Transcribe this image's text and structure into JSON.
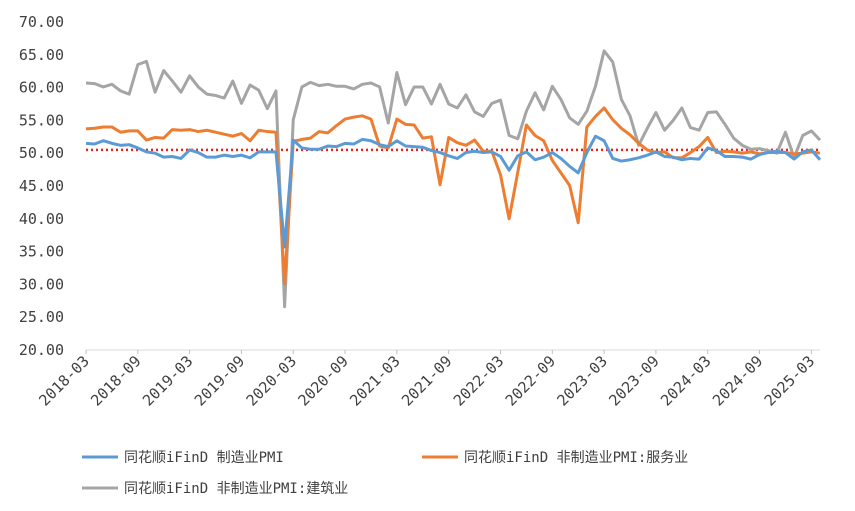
{
  "chart_data": {
    "type": "line",
    "title": "",
    "xlabel": "",
    "ylabel": "",
    "ylim": [
      20,
      70
    ],
    "y_ticks": [
      "20.00",
      "25.00",
      "30.00",
      "35.00",
      "40.00",
      "45.00",
      "50.00",
      "55.00",
      "60.00",
      "65.00",
      "70.00"
    ],
    "x_ticks": [
      "2018-03",
      "2018-09",
      "2019-03",
      "2019-09",
      "2020-03",
      "2020-09",
      "2021-03",
      "2021-09",
      "2022-03",
      "2022-09",
      "2023-03",
      "2023-09",
      "2024-03",
      "2024-09",
      "2025-03"
    ],
    "x_start": "2018-03",
    "grid": false,
    "legend_position": "bottom",
    "reference_line": {
      "value": 50.5,
      "style": "dotted",
      "color": "#e8231a"
    },
    "series": [
      {
        "name": "同花顺iFinD 制造业PMI",
        "color": "#5b9bd5",
        "values": [
          51.5,
          51.4,
          51.9,
          51.5,
          51.2,
          51.3,
          50.8,
          50.2,
          50.0,
          49.4,
          49.5,
          49.2,
          50.5,
          50.1,
          49.4,
          49.4,
          49.7,
          49.5,
          49.7,
          49.3,
          50.2,
          50.2,
          50.2,
          35.7,
          52.0,
          50.8,
          50.6,
          50.6,
          51.1,
          51.0,
          51.5,
          51.4,
          52.1,
          51.9,
          51.3,
          51.0,
          51.9,
          51.1,
          51.0,
          50.9,
          50.4,
          50.1,
          49.6,
          49.2,
          50.1,
          50.3,
          50.1,
          50.2,
          49.5,
          47.4,
          49.6,
          50.2,
          49.0,
          49.4,
          50.1,
          49.2,
          48.0,
          47.0,
          50.1,
          52.6,
          51.9,
          49.2,
          48.8,
          49.0,
          49.3,
          49.7,
          50.2,
          49.5,
          49.4,
          49.0,
          49.2,
          49.1,
          50.8,
          50.4,
          49.5,
          49.5,
          49.4,
          49.1,
          49.8,
          50.1,
          50.3,
          50.1,
          49.1,
          50.2,
          50.5,
          49.0
        ]
      },
      {
        "name": "同花顺iFinD 非制造业PMI:服务业",
        "color": "#ed7d31",
        "values": [
          53.7,
          53.8,
          54.0,
          54.0,
          53.2,
          53.4,
          53.4,
          52.0,
          52.4,
          52.3,
          53.6,
          53.5,
          53.6,
          53.3,
          53.5,
          53.2,
          52.9,
          52.6,
          53.0,
          51.9,
          53.5,
          53.3,
          53.2,
          30.1,
          51.8,
          52.1,
          52.3,
          53.3,
          53.1,
          54.2,
          55.2,
          55.5,
          55.7,
          55.2,
          51.1,
          50.8,
          55.2,
          54.4,
          54.3,
          52.3,
          52.5,
          45.2,
          52.4,
          51.6,
          51.2,
          52.0,
          50.3,
          50.3,
          46.7,
          40.0,
          47.1,
          54.3,
          52.7,
          51.9,
          48.9,
          47.0,
          45.1,
          39.4,
          54.0,
          55.6,
          56.9,
          55.1,
          53.8,
          52.8,
          51.5,
          50.5,
          50.1,
          50.2,
          49.3,
          49.3,
          50.1,
          51.0,
          52.4,
          50.1,
          50.3,
          50.2,
          50.0,
          50.2,
          49.9,
          50.1,
          50.1,
          50.1,
          49.9,
          50.0,
          50.2,
          50.0
        ]
      },
      {
        "name": "同花顺iFinD 非制造业PMI:建筑业",
        "color": "#a5a5a5",
        "values": [
          60.7,
          60.6,
          60.1,
          60.5,
          59.5,
          59.0,
          63.5,
          64.0,
          59.3,
          62.6,
          61.0,
          59.3,
          61.8,
          60.1,
          59.0,
          58.8,
          58.4,
          61.0,
          57.6,
          60.4,
          59.6,
          56.8,
          59.5,
          26.6,
          55.1,
          60.1,
          60.8,
          60.3,
          60.5,
          60.2,
          60.2,
          59.8,
          60.5,
          60.7,
          60.1,
          54.6,
          62.3,
          57.4,
          60.1,
          60.1,
          57.5,
          60.5,
          57.5,
          56.9,
          58.9,
          56.3,
          55.6,
          57.6,
          58.1,
          52.7,
          52.2,
          56.4,
          59.2,
          56.6,
          60.2,
          58.2,
          55.4,
          54.4,
          56.4,
          60.2,
          65.6,
          63.9,
          58.2,
          55.7,
          51.2,
          53.8,
          56.2,
          53.5,
          55.0,
          56.9,
          53.9,
          53.5,
          56.2,
          56.3,
          54.4,
          52.3,
          51.2,
          50.6,
          50.7,
          50.4,
          50.0,
          53.2,
          49.3,
          52.7,
          53.4,
          52.0
        ]
      }
    ]
  }
}
